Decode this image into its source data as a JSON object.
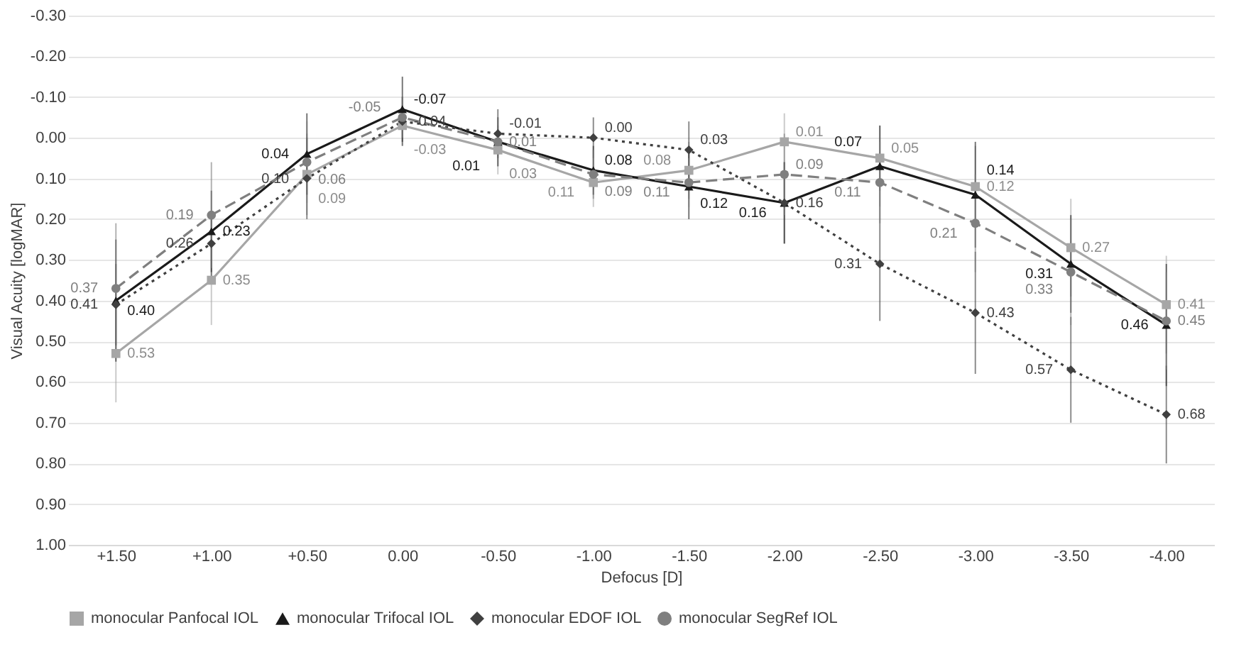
{
  "chart_data": {
    "type": "line",
    "xlabel": "Defocus [D]",
    "ylabel": "Visual Acuity [logMAR]",
    "categories": [
      "+1.50",
      "+1.00",
      "+0.50",
      "0.00",
      "-0.50",
      "-1.00",
      "-1.50",
      "-2.00",
      "-2.50",
      "-3.00",
      "-3.50",
      "-4.00"
    ],
    "ylim": [
      1.0,
      -0.3
    ],
    "yticks": [
      {
        "value": -0.3,
        "label": "-0.30"
      },
      {
        "value": -0.2,
        "label": "-0.20"
      },
      {
        "value": -0.1,
        "label": "-0.10"
      },
      {
        "value": 0,
        "label": "0.00"
      },
      {
        "value": 0.1,
        "label": "0.10"
      },
      {
        "value": 0.2,
        "label": "0.20"
      },
      {
        "value": 0.3,
        "label": "0.30"
      },
      {
        "value": 0.4,
        "label": "0.40"
      },
      {
        "value": 0.5,
        "label": "0.50"
      },
      {
        "value": 0.6,
        "label": "0.60"
      },
      {
        "value": 0.7,
        "label": "0.70"
      },
      {
        "value": 0.8,
        "label": "0.80"
      },
      {
        "value": 0.9,
        "label": "0.90"
      },
      {
        "value": 1.0,
        "label": "1.00"
      }
    ],
    "grid": "y",
    "legend": "bottom",
    "series": [
      {
        "name": "monocular Panfocal IOL",
        "color": "#a6a6a6",
        "marker": "square",
        "line_style": "solid",
        "values": [
          0.53,
          0.35,
          0.09,
          -0.03,
          0.03,
          0.11,
          0.08,
          0.01,
          0.05,
          0.12,
          0.27,
          0.41
        ],
        "value_labels": [
          "0.53",
          "0.35",
          "0.09",
          "-0.03",
          "0.03",
          "0.11",
          "0.08",
          "0.01",
          "0.05",
          "0.12",
          "0.27",
          "0.41"
        ],
        "errors": [
          0.12,
          0.11,
          0.1,
          0.05,
          0.06,
          0.06,
          0.07,
          0.07,
          0.08,
          0.1,
          0.12,
          0.12
        ]
      },
      {
        "name": "monocular Trifocal IOL",
        "color": "#1a1a1a",
        "marker": "triangle",
        "line_style": "solid",
        "values": [
          0.4,
          0.23,
          0.04,
          -0.07,
          0.01,
          0.08,
          0.12,
          0.16,
          0.07,
          0.14,
          0.31,
          0.46
        ],
        "value_labels": [
          "0.40",
          "0.23",
          "0.04",
          "-0.07",
          "0.01",
          "0.08",
          "0.12",
          "0.16",
          "0.07",
          "0.14",
          "0.31",
          "0.46"
        ],
        "errors": [
          0.15,
          0.1,
          0.1,
          0.08,
          0.06,
          0.06,
          0.08,
          0.1,
          0.1,
          0.13,
          0.12,
          0.15
        ]
      },
      {
        "name": "monocular EDOF IOL",
        "color": "#404040",
        "marker": "diamond",
        "line_style": "dotted",
        "values": [
          0.41,
          0.26,
          0.1,
          -0.04,
          -0.01,
          0.0,
          0.03,
          0.16,
          0.31,
          0.43,
          0.57,
          0.68
        ],
        "value_labels": [
          "0.41",
          "0.26",
          "0.10",
          "-0.04",
          "-0.01",
          "0.00",
          "0.03",
          "0.16",
          "0.31",
          "0.43",
          "0.57",
          "0.68"
        ],
        "errors": [
          0.1,
          0.08,
          0.1,
          0.06,
          0.06,
          0.05,
          0.07,
          0.1,
          0.14,
          0.15,
          0.13,
          0.12
        ]
      },
      {
        "name": "monocular SegRef IOL",
        "color": "#7f7f7f",
        "marker": "circle",
        "line_style": "dashed",
        "values": [
          0.37,
          0.19,
          0.06,
          -0.05,
          0.01,
          0.09,
          0.11,
          0.09,
          0.11,
          0.21,
          0.33,
          0.45
        ],
        "value_labels": [
          "0.37",
          "0.19",
          "0.06",
          "-0.05",
          "0.01",
          "0.09",
          "0.11",
          "0.09",
          "0.11",
          "0.21",
          "0.33",
          "0.45"
        ],
        "errors": [
          0.16,
          0.13,
          0.1,
          0.05,
          0.06,
          0.06,
          0.06,
          0.1,
          0.1,
          0.12,
          0.13,
          0.12
        ]
      }
    ]
  }
}
